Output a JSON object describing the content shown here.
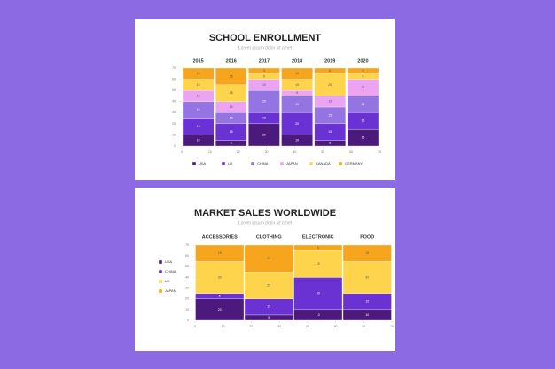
{
  "chart_data": [
    {
      "type": "stacked-bar",
      "title": "SCHOOL ENROLLMENT",
      "subtitle": "Lorem ipsum dolor sit amet",
      "categories": [
        "2015",
        "2016",
        "2017",
        "2018",
        "2019",
        "2020"
      ],
      "series": [
        {
          "name": "USA",
          "color": "#4b1a7c",
          "values": [
            10,
            5,
            20,
            10,
            5,
            15
          ]
        },
        {
          "name": "UK",
          "color": "#6a32d2",
          "values": [
            15,
            15,
            10,
            20,
            15,
            15
          ]
        },
        {
          "name": "CHINA",
          "color": "#9473e2",
          "values": [
            15,
            10,
            20,
            15,
            15,
            15
          ]
        },
        {
          "name": "JAPAN",
          "color": "#eba3f2",
          "values": [
            10,
            10,
            10,
            5,
            10,
            15
          ]
        },
        {
          "name": "CANADA",
          "color": "#fdd44c",
          "values": [
            10,
            15,
            5,
            10,
            20,
            5
          ]
        },
        {
          "name": "GERMANY",
          "color": "#f7a51c",
          "values": [
            10,
            15,
            5,
            10,
            5,
            5
          ]
        }
      ],
      "ylim": [
        0,
        70
      ],
      "yticks": [
        0,
        10,
        20,
        30,
        40,
        50,
        60,
        70
      ],
      "xlim": [
        0,
        70
      ],
      "xticks": [
        0,
        10,
        20,
        30,
        40,
        50,
        60,
        70
      ],
      "legend": "bottom"
    },
    {
      "type": "stacked-bar",
      "title": "MARKET SALES WORLDWIDE",
      "subtitle": "Lorem ipsum dolor sit amet",
      "categories": [
        "ACCESSORIES",
        "CLOTHING",
        "ELECTRONIC",
        "FOOD"
      ],
      "series": [
        {
          "name": "USA",
          "color": "#4b1a7c",
          "values": [
            20,
            5,
            10,
            10
          ]
        },
        {
          "name": "CHINA",
          "color": "#6a32d2",
          "values": [
            5,
            15,
            30,
            15
          ]
        },
        {
          "name": "UK",
          "color": "#fdd44c",
          "values": [
            30,
            25,
            25,
            30
          ]
        },
        {
          "name": "JAPAN",
          "color": "#f7a51c",
          "values": [
            15,
            25,
            5,
            15
          ]
        }
      ],
      "ylim": [
        0,
        70
      ],
      "yticks": [
        0,
        10,
        20,
        30,
        40,
        50,
        60,
        70
      ],
      "xlim": [
        0,
        70
      ],
      "xticks": [
        0,
        10,
        20,
        30,
        40,
        50,
        60,
        70
      ],
      "legend": "left"
    }
  ]
}
